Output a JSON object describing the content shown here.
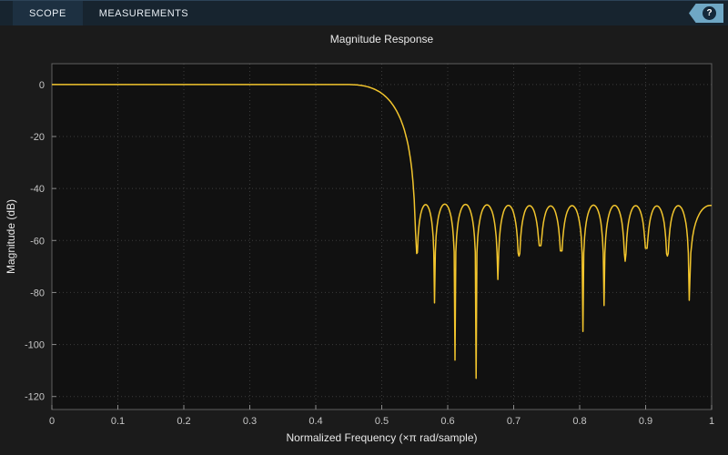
{
  "toolbar": {
    "tabs": [
      {
        "label": "SCOPE",
        "active": true
      },
      {
        "label": "MEASUREMENTS",
        "active": false
      }
    ],
    "help_label": "?"
  },
  "colors": {
    "window_bg": "#1b1b1b",
    "toolbar_bg": "#17242f",
    "toolbar_active": "#1d3041",
    "plot_bg": "#111111",
    "grid": "#3c3c3c",
    "axis": "#5f5f5f",
    "tick": "#8a8a8a",
    "text": "#e8e8e8",
    "tick_text": "#c6c6c6",
    "line": "#f2c52d",
    "help_tag": "#6fa7c5",
    "help_circle": "#14283a"
  },
  "chart_data": {
    "type": "line",
    "title": "Magnitude Response",
    "xlabel": "Normalized Frequency (×π rad/sample)",
    "ylabel": "Magnitude (dB)",
    "xlim": [
      0,
      1
    ],
    "ylim": [
      -125,
      8
    ],
    "x_ticks": {
      "values": [
        0,
        0.1,
        0.2,
        0.3,
        0.4,
        0.5,
        0.6,
        0.7,
        0.8,
        0.9,
        1
      ],
      "labels": [
        "0",
        "0.1",
        "0.2",
        "0.3",
        "0.4",
        "0.5",
        "0.6",
        "0.7",
        "0.8",
        "0.9",
        "1"
      ]
    },
    "y_ticks": {
      "values": [
        0,
        -20,
        -40,
        -60,
        -80,
        -100,
        -120
      ],
      "labels": [
        "0",
        "-20",
        "-40",
        "-60",
        "-80",
        "-100",
        "-120"
      ]
    },
    "grid": "dotted",
    "legend": "none",
    "filter_response": {
      "passband_db": 0,
      "passband_edge": 0.44,
      "stopband_start": 0.553,
      "stopband_peak_db_nominal": -46.5,
      "notches_x": [
        0.553,
        0.58,
        0.611,
        0.643,
        0.676,
        0.708,
        0.74,
        0.772,
        0.805,
        0.837,
        0.869,
        0.901,
        0.933,
        0.966
      ],
      "notches_db": [
        -65,
        -84,
        -106,
        -113,
        -75,
        -66,
        -62,
        -64,
        -95,
        -85,
        -68,
        -63,
        -66,
        -83
      ],
      "lobe_peaks_db": [
        -46.2,
        -46.0,
        -46.1,
        -46.3,
        -46.5,
        -46.6,
        -46.7,
        -46.6,
        -46.4,
        -46.5,
        -46.6,
        -46.7,
        -46.6,
        -46.5
      ],
      "virtual_end_x": 1.03,
      "virtual_end_db": -60
    }
  }
}
